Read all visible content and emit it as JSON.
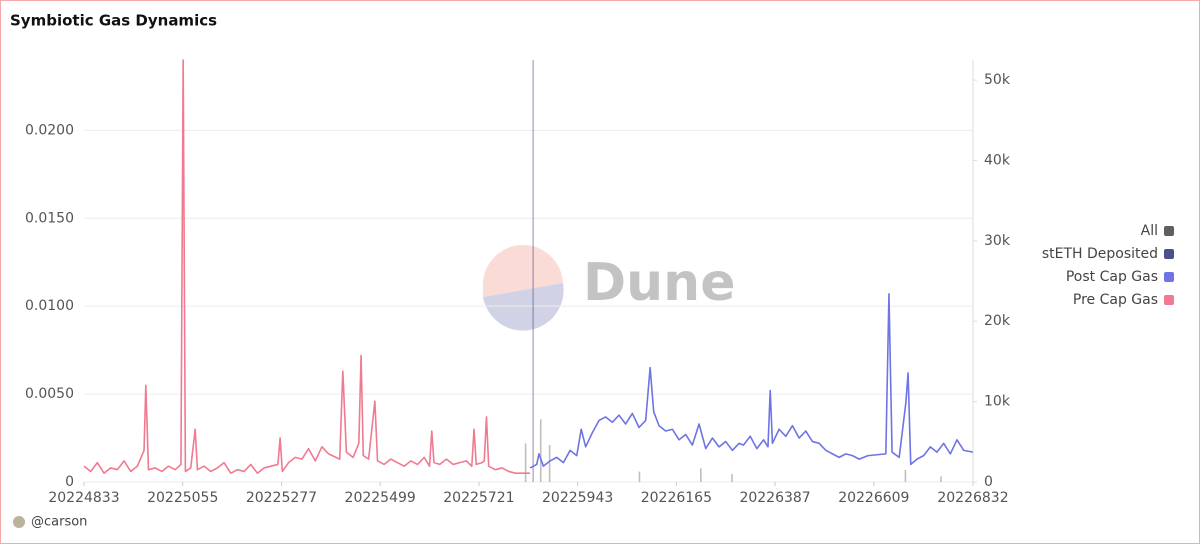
{
  "chart_data": {
    "type": "line",
    "title": "Symbiotic Gas Dynamics",
    "watermark": "Dune",
    "author": "@carson",
    "xlim": [
      20224833,
      20226832
    ],
    "xticks": [
      20224833,
      20225055,
      20225277,
      20225499,
      20225721,
      20225943,
      20226165,
      20226387,
      20226609,
      20226832
    ],
    "ylim": [
      0,
      0.024
    ],
    "yticks": [
      0,
      {
        "value": 0.005,
        "label": "0.0050"
      },
      {
        "value": 0.01,
        "label": "0.0100"
      },
      {
        "value": 0.015,
        "label": "0.0150"
      },
      {
        "value": 0.02,
        "label": "0.0200"
      }
    ],
    "y2lim": [
      0,
      52500
    ],
    "y2ticks": [
      0,
      {
        "value": 10000,
        "label": "10k"
      },
      {
        "value": 20000,
        "label": "20k"
      },
      {
        "value": 30000,
        "label": "30k"
      },
      {
        "value": 40000,
        "label": "40k"
      },
      {
        "value": 50000,
        "label": "50k"
      }
    ],
    "grid": true,
    "legend": "right",
    "series": [
      {
        "name": "All",
        "color": "#5f5f5f",
        "kind": "bar",
        "axis": "y2",
        "x": [
          20225826,
          20225860,
          20225880,
          20226082,
          20226220,
          20226290,
          20226680,
          20226760
        ],
        "values": [
          4800,
          7800,
          4600,
          1300,
          1700,
          1000,
          1500,
          700
        ]
      },
      {
        "name": "stETH Deposited",
        "color": "#4b4f8c",
        "kind": "bar",
        "axis": "y2",
        "x": [
          20225843
        ],
        "values": [
          52500
        ]
      },
      {
        "name": "Post Cap Gas",
        "color": "#6e74e4",
        "kind": "line",
        "x": [
          20225836,
          20225851,
          20225856,
          20225866,
          20225881,
          20225896,
          20225911,
          20225926,
          20225941,
          20225951,
          20225961,
          20225976,
          20225991,
          20226006,
          20226021,
          20226036,
          20226051,
          20226066,
          20226081,
          20226096,
          20226106,
          20226114,
          20226126,
          20226141,
          20226156,
          20226171,
          20226186,
          20226201,
          20226216,
          20226231,
          20226246,
          20226261,
          20226276,
          20226291,
          20226306,
          20226316,
          20226331,
          20226346,
          20226361,
          20226371,
          20226376,
          20226381,
          20226396,
          20226411,
          20226426,
          20226441,
          20226456,
          20226471,
          20226486,
          20226501,
          20226516,
          20226531,
          20226546,
          20226561,
          20226576,
          20226596,
          20226636,
          20226643,
          20226650,
          20226666,
          20226681,
          20226686,
          20226692,
          20226706,
          20226721,
          20226736,
          20226751,
          20226766,
          20226781,
          20226796,
          20226811,
          20226832
        ],
        "values": [
          0.0008,
          0.001,
          0.0016,
          0.0009,
          0.0012,
          0.0014,
          0.0011,
          0.0018,
          0.0015,
          0.003,
          0.002,
          0.0028,
          0.0035,
          0.0037,
          0.0034,
          0.0038,
          0.0033,
          0.0039,
          0.0031,
          0.0035,
          0.0065,
          0.004,
          0.0032,
          0.0029,
          0.003,
          0.0024,
          0.0027,
          0.0021,
          0.0033,
          0.0019,
          0.0025,
          0.002,
          0.0023,
          0.0018,
          0.0022,
          0.0021,
          0.0026,
          0.0019,
          0.0024,
          0.002,
          0.0052,
          0.0022,
          0.003,
          0.0026,
          0.0032,
          0.0025,
          0.0029,
          0.0023,
          0.0022,
          0.0018,
          0.0016,
          0.0014,
          0.0016,
          0.0015,
          0.0013,
          0.0015,
          0.0016,
          0.0107,
          0.0017,
          0.0014,
          0.0045,
          0.0062,
          0.001,
          0.0013,
          0.0015,
          0.002,
          0.0017,
          0.0022,
          0.0016,
          0.0024,
          0.0018,
          0.0017
        ]
      },
      {
        "name": "Pre Cap Gas",
        "color": "#f07a90",
        "kind": "line",
        "x": [
          20224833,
          20224848,
          20224863,
          20224878,
          20224893,
          20224908,
          20224923,
          20224938,
          20224953,
          20224968,
          20224972,
          20224978,
          20224993,
          20225008,
          20225023,
          20225038,
          20225051,
          20225056,
          20225061,
          20225073,
          20225083,
          20225088,
          20225103,
          20225118,
          20225133,
          20225148,
          20225163,
          20225178,
          20225193,
          20225208,
          20225223,
          20225238,
          20225253,
          20225269,
          20225274,
          20225279,
          20225293,
          20225308,
          20225323,
          20225338,
          20225353,
          20225368,
          20225383,
          20225408,
          20225415,
          20225423,
          20225438,
          20225451,
          20225456,
          20225461,
          20225473,
          20225487,
          20225493,
          20225508,
          20225523,
          20225538,
          20225553,
          20225568,
          20225583,
          20225598,
          20225610,
          20225615,
          20225620,
          20225633,
          20225648,
          20225663,
          20225678,
          20225693,
          20225705,
          20225710,
          20225715,
          20225728,
          20225733,
          20225738,
          20225743,
          20225758,
          20225773,
          20225788,
          20225803,
          20225836
        ],
        "values": [
          0.0009,
          0.0006,
          0.0011,
          0.0005,
          0.0008,
          0.0007,
          0.0012,
          0.0006,
          0.0009,
          0.0018,
          0.0055,
          0.0007,
          0.0008,
          0.0006,
          0.0009,
          0.0007,
          0.001,
          0.024,
          0.0006,
          0.0008,
          0.003,
          0.0007,
          0.0009,
          0.0006,
          0.0008,
          0.0011,
          0.0005,
          0.0007,
          0.0006,
          0.001,
          0.0005,
          0.0008,
          0.0009,
          0.001,
          0.0025,
          0.0006,
          0.0011,
          0.0014,
          0.0013,
          0.0019,
          0.0012,
          0.002,
          0.0016,
          0.0013,
          0.0063,
          0.0017,
          0.0014,
          0.0022,
          0.0072,
          0.0015,
          0.0013,
          0.0046,
          0.0012,
          0.001,
          0.0013,
          0.0011,
          0.0009,
          0.0012,
          0.001,
          0.0014,
          0.0009,
          0.0029,
          0.0011,
          0.001,
          0.0013,
          0.001,
          0.0011,
          0.0012,
          0.0009,
          0.003,
          0.001,
          0.0011,
          0.0012,
          0.0037,
          0.0009,
          0.0007,
          0.0008,
          0.0006,
          0.0005,
          0.0005
        ]
      }
    ]
  }
}
